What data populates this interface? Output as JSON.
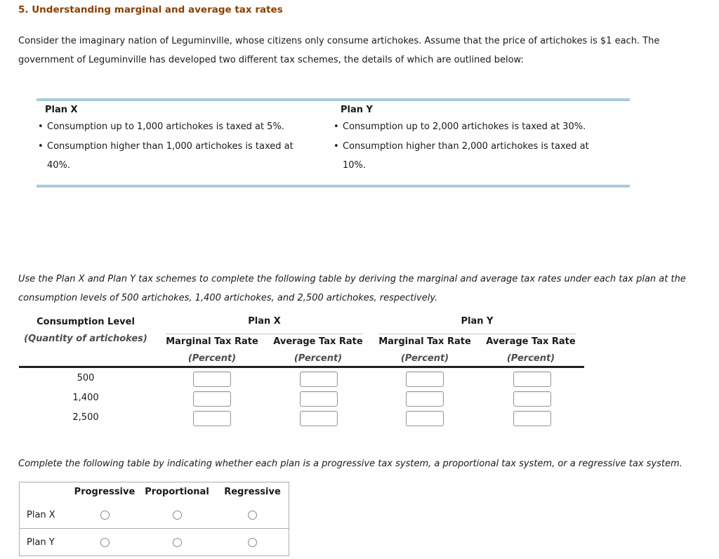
{
  "colors": {
    "accent_bar": "#a8ccd9",
    "title_text": "#8b4000",
    "table_rule": "#1f1f1f"
  },
  "glyphs": {
    "bullet": "•"
  },
  "page": {
    "title": "5. Understanding marginal and average tax rates"
  },
  "intro": {
    "line1": "Consider the imaginary nation of Leguminville, whose citizens only consume artichokes. Assume that the price of artichokes is $1 each. The",
    "line2": "government of Leguminville has developed two different tax schemes, the details of which are outlined below:"
  },
  "plan_box": {
    "plan_x": {
      "title": "Plan X",
      "bullet1": "Consumption up to 1,000 artichokes is taxed at 5%.",
      "bullet2_line1": "Consumption higher than 1,000 artichokes is taxed at",
      "bullet2_line2": "40%."
    },
    "plan_y": {
      "title": "Plan Y",
      "bullet1": "Consumption up to 2,000 artichokes is taxed at 30%.",
      "bullet2_line1": "Consumption higher than 2,000 artichokes is taxed at",
      "bullet2_line2": "10%."
    }
  },
  "instructions": {
    "line1": "Use the Plan X and Plan Y tax schemes to complete the following table by deriving the marginal and average tax rates under each tax plan at the",
    "line2": "consumption levels of 500 artichokes, 1,400 artichokes, and 2,500 artichokes, respectively."
  },
  "rate_table": {
    "col1_header": "Consumption Level",
    "col1_subheader": "(Quantity of artichokes)",
    "plan_x_header": "Plan X",
    "plan_y_header": "Plan Y",
    "subheaders": [
      "Marginal Tax Rate",
      "Average Tax Rate",
      "Marginal Tax Rate",
      "Average Tax Rate"
    ],
    "unit_label": "(Percent)",
    "rows": [
      {
        "consumption": "500",
        "values": [
          "",
          "",
          "",
          ""
        ]
      },
      {
        "consumption": "1,400",
        "values": [
          "",
          "",
          "",
          ""
        ]
      },
      {
        "consumption": "2,500",
        "values": [
          "",
          "",
          "",
          ""
        ]
      }
    ]
  },
  "classification": {
    "instruction": "Complete the following table by indicating whether each plan is a progressive tax system, a proportional tax system, or a regressive tax system.",
    "columns": [
      "Progressive",
      "Proportional",
      "Regressive"
    ],
    "rows": [
      {
        "label": "Plan X"
      },
      {
        "label": "Plan Y"
      }
    ]
  }
}
